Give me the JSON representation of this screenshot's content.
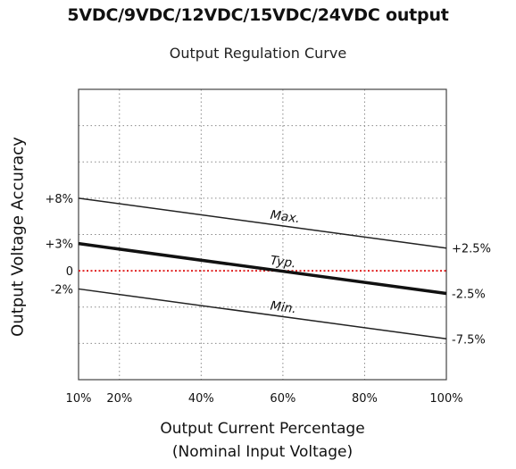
{
  "header": {
    "top_title": "5VDC/9VDC/12VDC/15VDC/24VDC output"
  },
  "chart_data": {
    "type": "line",
    "title": "Output Regulation Curve",
    "xlabel": "Output Current Percentage",
    "xlabel_sub": "(Nominal Input Voltage)",
    "ylabel": "Output Voltage Accuracy",
    "x": [
      10,
      100
    ],
    "xlim": [
      10,
      100
    ],
    "x_ticks": [
      "10%",
      "20%",
      "40%",
      "60%",
      "80%",
      "100%"
    ],
    "x_tick_values": [
      10,
      20,
      40,
      60,
      80,
      100
    ],
    "ylim": [
      -12,
      20
    ],
    "y_ticks_left": [
      "+8%",
      "+3%",
      "0",
      "-2%"
    ],
    "y_tick_left_values": [
      8,
      3,
      0,
      -2
    ],
    "y_ticks_right": [
      "+2.5%",
      "-2.5%",
      "-7.5%"
    ],
    "y_tick_right_values": [
      2.5,
      -2.5,
      -7.5
    ],
    "grid": true,
    "series": [
      {
        "name": "Max.",
        "values": [
          8,
          2.5
        ],
        "color": "#222222",
        "weight": "normal"
      },
      {
        "name": "Typ.",
        "values": [
          3,
          -2.5
        ],
        "color": "#111111",
        "weight": "bold"
      },
      {
        "name": "Min.",
        "values": [
          -2,
          -7.5
        ],
        "color": "#222222",
        "weight": "normal"
      }
    ],
    "reference_line": {
      "y": 0,
      "color": "#e02020",
      "style": "dotted"
    }
  }
}
